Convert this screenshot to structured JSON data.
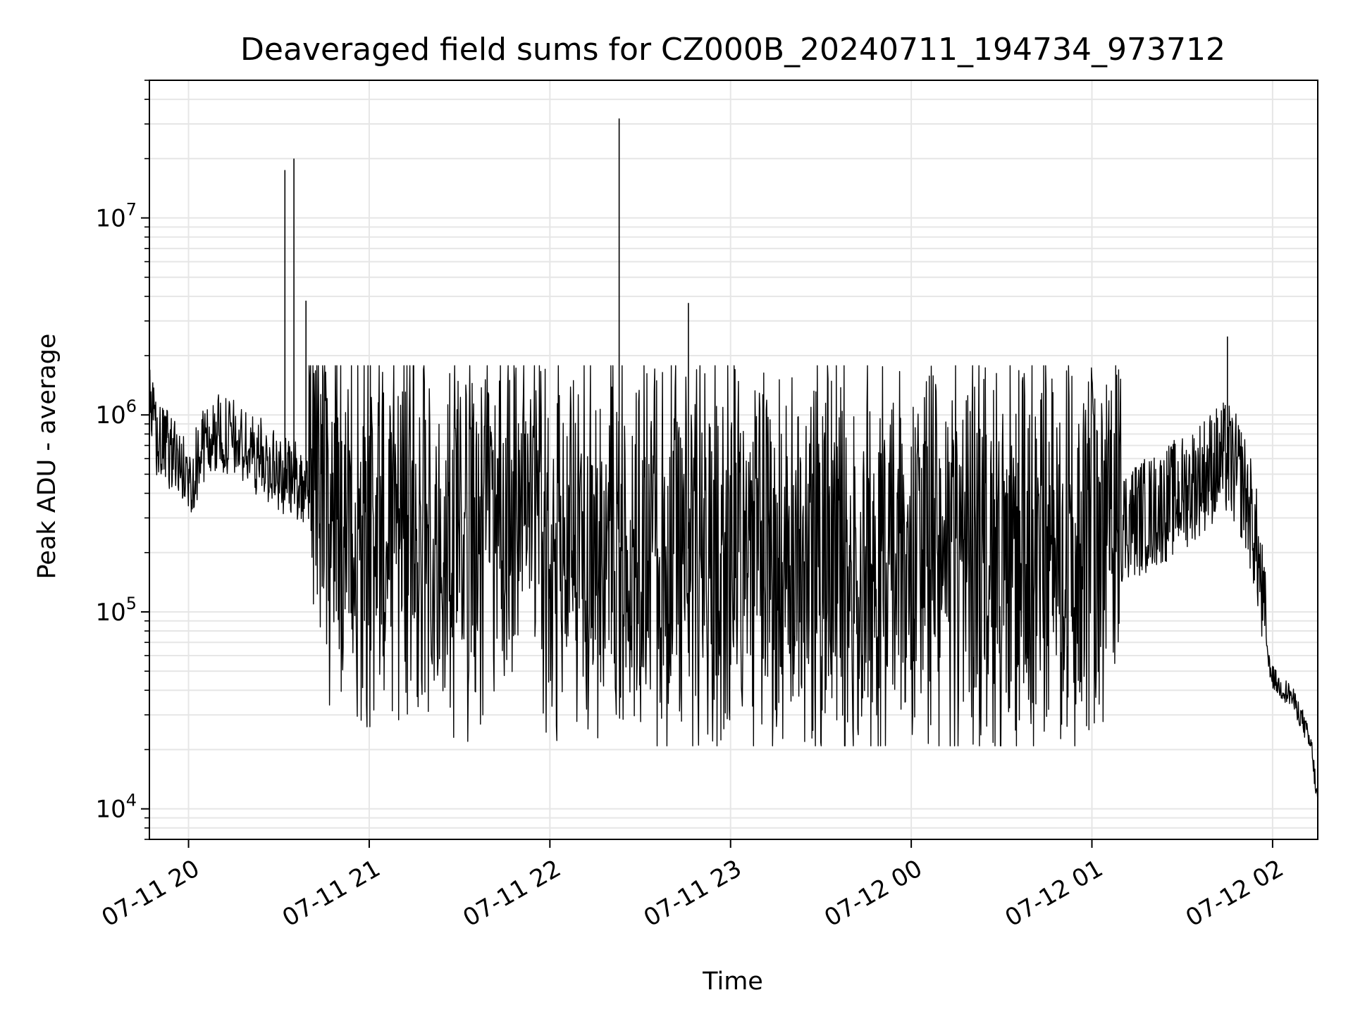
{
  "chart_data": {
    "type": "line",
    "title": "Deaveraged field sums for CZ000B_20240711_194734_973712",
    "xlabel": "Time",
    "ylabel": "Peak ADU - average",
    "yscale": "log",
    "ylim": [
      7000,
      50000000
    ],
    "xlim": [
      "2024-07-11 19:47",
      "2024-07-12 02:15"
    ],
    "x_ticks": [
      {
        "value": "2024-07-11 20:00",
        "label": "07-11 20"
      },
      {
        "value": "2024-07-11 21:00",
        "label": "07-11 21"
      },
      {
        "value": "2024-07-11 22:00",
        "label": "07-11 22"
      },
      {
        "value": "2024-07-11 23:00",
        "label": "07-11 23"
      },
      {
        "value": "2024-07-12 00:00",
        "label": "07-12 00"
      },
      {
        "value": "2024-07-12 01:00",
        "label": "07-12 01"
      },
      {
        "value": "2024-07-12 02:00",
        "label": "07-12 02"
      }
    ],
    "y_ticks": [
      {
        "value": 10000,
        "base": "10",
        "exp": "4"
      },
      {
        "value": 100000,
        "base": "10",
        "exp": "5"
      },
      {
        "value": 1000000,
        "base": "10",
        "exp": "6"
      },
      {
        "value": 10000000,
        "base": "10",
        "exp": "7"
      }
    ],
    "grid": true,
    "grid_color": "#e6e6e6",
    "line_color": "#000000",
    "series": [
      {
        "values": [
          [
            "2024-07-11 19:47",
            1100000
          ],
          [
            "2024-07-11 19:50",
            700000
          ],
          [
            "2024-07-11 19:55",
            650000
          ],
          [
            "2024-07-11 20:00",
            450000
          ],
          [
            "2024-07-11 20:05",
            700000
          ],
          [
            "2024-07-11 20:10",
            800000
          ],
          [
            "2024-07-11 20:15",
            750000
          ],
          [
            "2024-07-11 20:20",
            650000
          ],
          [
            "2024-07-11 20:25",
            600000
          ],
          [
            "2024-07-11 20:30",
            500000
          ],
          [
            "2024-07-11 20:35",
            480000
          ],
          [
            "2024-07-11 20:40",
            420000
          ],
          [
            "2024-07-11 20:45",
            380000
          ],
          [
            "2024-07-11 20:50",
            330000
          ],
          [
            "2024-07-11 20:55",
            300000
          ],
          [
            "2024-07-11 21:00",
            320000
          ],
          [
            "2024-07-11 21:15",
            300000
          ],
          [
            "2024-07-11 21:30",
            280000
          ],
          [
            "2024-07-11 21:45",
            260000
          ],
          [
            "2024-07-11 22:00",
            240000
          ],
          [
            "2024-07-11 22:15",
            230000
          ],
          [
            "2024-07-11 22:30",
            220000
          ],
          [
            "2024-07-11 22:45",
            210000
          ],
          [
            "2024-07-11 23:00",
            200000
          ],
          [
            "2024-07-11 23:15",
            190000
          ],
          [
            "2024-07-11 23:30",
            180000
          ],
          [
            "2024-07-11 23:45",
            170000
          ],
          [
            "2024-07-12 00:00",
            170000
          ],
          [
            "2024-07-12 00:15",
            170000
          ],
          [
            "2024-07-12 00:30",
            180000
          ],
          [
            "2024-07-12 00:45",
            190000
          ],
          [
            "2024-07-12 01:00",
            210000
          ],
          [
            "2024-07-12 01:10",
            280000
          ],
          [
            "2024-07-12 01:20",
            320000
          ],
          [
            "2024-07-12 01:30",
            400000
          ],
          [
            "2024-07-12 01:40",
            550000
          ],
          [
            "2024-07-12 01:45",
            600000
          ],
          [
            "2024-07-12 01:50",
            450000
          ],
          [
            "2024-07-12 01:53",
            300000
          ],
          [
            "2024-07-12 01:55",
            200000
          ],
          [
            "2024-07-12 01:57",
            100000
          ],
          [
            "2024-07-12 01:59",
            50000
          ],
          [
            "2024-07-12 02:02",
            42000
          ],
          [
            "2024-07-12 02:06",
            38000
          ],
          [
            "2024-07-12 02:10",
            28000
          ],
          [
            "2024-07-12 02:13",
            20000
          ],
          [
            "2024-07-12 02:15",
            10500
          ]
        ]
      }
    ],
    "spikes": [
      [
        "2024-07-11 20:39",
        3800000
      ],
      [
        "2024-07-11 20:32",
        17500000
      ],
      [
        "2024-07-11 20:35",
        20000000
      ],
      [
        "2024-07-11 22:23",
        32000000
      ],
      [
        "2024-07-11 22:46",
        3700000
      ],
      [
        "2024-07-12 01:45",
        2500000
      ]
    ]
  }
}
